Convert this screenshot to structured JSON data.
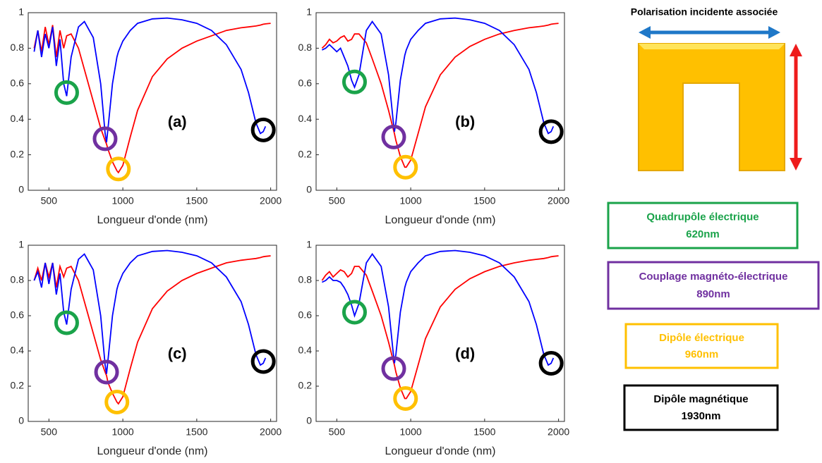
{
  "chart_data": [
    {
      "type": "line",
      "label": "(a)",
      "x_label": "Longueur d'onde (nm)",
      "x": [
        400,
        425,
        450,
        475,
        500,
        525,
        550,
        575,
        600,
        620,
        650,
        700,
        740,
        800,
        850,
        880,
        890,
        900,
        930,
        960,
        970,
        1000,
        1050,
        1100,
        1200,
        1300,
        1400,
        1500,
        1600,
        1700,
        1800,
        1850,
        1900,
        1930,
        1950,
        1965,
        2000
      ],
      "series": [
        {
          "color": "#ff0000",
          "values": [
            0.8,
            0.9,
            0.78,
            0.92,
            0.82,
            0.93,
            0.75,
            0.9,
            0.8,
            0.87,
            0.88,
            0.8,
            0.68,
            0.5,
            0.35,
            0.28,
            0.26,
            0.23,
            0.16,
            0.11,
            0.1,
            0.14,
            0.3,
            0.45,
            0.64,
            0.74,
            0.8,
            0.84,
            0.87,
            0.9,
            0.915,
            0.92,
            0.925,
            0.93,
            0.935,
            0.937,
            0.94
          ]
        },
        {
          "color": "#0000ff",
          "values": [
            0.78,
            0.9,
            0.75,
            0.88,
            0.8,
            0.92,
            0.7,
            0.85,
            0.6,
            0.53,
            0.75,
            0.92,
            0.95,
            0.86,
            0.6,
            0.32,
            0.27,
            0.35,
            0.6,
            0.75,
            0.78,
            0.84,
            0.9,
            0.94,
            0.965,
            0.97,
            0.96,
            0.94,
            0.9,
            0.82,
            0.68,
            0.55,
            0.38,
            0.32,
            0.33,
            0.36,
            null
          ]
        }
      ],
      "markers": [
        {
          "x": 620,
          "y": 0.55,
          "color": "#1aa34a"
        },
        {
          "x": 880,
          "y": 0.29,
          "color": "#7030a0"
        },
        {
          "x": 970,
          "y": 0.12,
          "color": "#ffc000"
        },
        {
          "x": 1950,
          "y": 0.34,
          "color": "#000000"
        }
      ],
      "xlim": [
        360,
        2040
      ],
      "ylim": [
        0,
        1
      ],
      "xticks": [
        500,
        1000,
        1500,
        2000
      ],
      "yticks": [
        0,
        0.2,
        0.4,
        0.6,
        0.8,
        1
      ]
    },
    {
      "type": "line",
      "label": "(b)",
      "x_label": "Longueur d'onde (nm)",
      "x": [
        400,
        425,
        450,
        475,
        500,
        525,
        550,
        575,
        600,
        620,
        650,
        700,
        740,
        800,
        850,
        880,
        890,
        900,
        930,
        960,
        970,
        1000,
        1050,
        1100,
        1200,
        1300,
        1400,
        1500,
        1600,
        1700,
        1800,
        1850,
        1900,
        1930,
        1950,
        1965,
        2000
      ],
      "series": [
        {
          "color": "#ff0000",
          "values": [
            0.8,
            0.82,
            0.85,
            0.83,
            0.84,
            0.86,
            0.87,
            0.84,
            0.85,
            0.88,
            0.88,
            0.83,
            0.74,
            0.6,
            0.45,
            0.35,
            0.32,
            0.28,
            0.19,
            0.13,
            0.13,
            0.17,
            0.32,
            0.47,
            0.65,
            0.75,
            0.81,
            0.85,
            0.88,
            0.9,
            0.915,
            0.92,
            0.925,
            0.93,
            0.935,
            0.937,
            0.94
          ]
        },
        {
          "color": "#0000ff",
          "values": [
            0.79,
            0.8,
            0.82,
            0.8,
            0.78,
            0.8,
            0.75,
            0.7,
            0.62,
            0.58,
            0.65,
            0.9,
            0.95,
            0.88,
            0.65,
            0.4,
            0.33,
            0.38,
            0.62,
            0.76,
            0.79,
            0.85,
            0.9,
            0.94,
            0.965,
            0.97,
            0.96,
            0.94,
            0.9,
            0.82,
            0.68,
            0.55,
            0.38,
            0.32,
            0.33,
            0.36,
            null
          ]
        }
      ],
      "markers": [
        {
          "x": 620,
          "y": 0.61,
          "color": "#1aa34a"
        },
        {
          "x": 885,
          "y": 0.3,
          "color": "#7030a0"
        },
        {
          "x": 965,
          "y": 0.13,
          "color": "#ffc000"
        },
        {
          "x": 1950,
          "y": 0.33,
          "color": "#000000"
        }
      ],
      "xlim": [
        360,
        2040
      ],
      "ylim": [
        0,
        1
      ],
      "xticks": [
        500,
        1000,
        1500,
        2000
      ],
      "yticks": [
        0,
        0.2,
        0.4,
        0.6,
        0.8,
        1
      ]
    },
    {
      "type": "line",
      "label": "(c)",
      "x_label": "Longueur d'onde (nm)",
      "x": [
        400,
        425,
        450,
        475,
        500,
        525,
        550,
        575,
        600,
        620,
        650,
        700,
        740,
        800,
        850,
        880,
        890,
        900,
        930,
        960,
        970,
        1000,
        1050,
        1100,
        1200,
        1300,
        1400,
        1500,
        1600,
        1700,
        1800,
        1850,
        1900,
        1930,
        1950,
        1965,
        2000
      ],
      "series": [
        {
          "color": "#ff0000",
          "values": [
            0.8,
            0.87,
            0.8,
            0.9,
            0.82,
            0.9,
            0.76,
            0.88,
            0.82,
            0.87,
            0.88,
            0.8,
            0.68,
            0.5,
            0.35,
            0.28,
            0.26,
            0.22,
            0.16,
            0.11,
            0.1,
            0.14,
            0.3,
            0.45,
            0.64,
            0.74,
            0.8,
            0.84,
            0.87,
            0.9,
            0.915,
            0.92,
            0.925,
            0.93,
            0.935,
            0.937,
            0.94
          ]
        },
        {
          "color": "#0000ff",
          "values": [
            0.8,
            0.85,
            0.76,
            0.9,
            0.78,
            0.9,
            0.72,
            0.84,
            0.62,
            0.55,
            0.75,
            0.92,
            0.95,
            0.86,
            0.6,
            0.32,
            0.27,
            0.35,
            0.6,
            0.75,
            0.78,
            0.84,
            0.9,
            0.94,
            0.965,
            0.97,
            0.96,
            0.94,
            0.9,
            0.82,
            0.68,
            0.55,
            0.38,
            0.32,
            0.33,
            0.36,
            null
          ]
        }
      ],
      "markers": [
        {
          "x": 620,
          "y": 0.56,
          "color": "#1aa34a"
        },
        {
          "x": 890,
          "y": 0.28,
          "color": "#7030a0"
        },
        {
          "x": 960,
          "y": 0.11,
          "color": "#ffc000"
        },
        {
          "x": 1950,
          "y": 0.34,
          "color": "#000000"
        }
      ],
      "xlim": [
        360,
        2040
      ],
      "ylim": [
        0,
        1
      ],
      "xticks": [
        500,
        1000,
        1500,
        2000
      ],
      "yticks": [
        0,
        0.2,
        0.4,
        0.6,
        0.8,
        1
      ]
    },
    {
      "type": "line",
      "label": "(d)",
      "x_label": "Longueur d'onde (nm)",
      "x": [
        400,
        425,
        450,
        475,
        500,
        525,
        550,
        575,
        600,
        620,
        650,
        700,
        740,
        800,
        850,
        880,
        890,
        900,
        930,
        960,
        970,
        1000,
        1050,
        1100,
        1200,
        1300,
        1400,
        1500,
        1600,
        1700,
        1800,
        1850,
        1900,
        1930,
        1950,
        1965,
        2000
      ],
      "series": [
        {
          "color": "#ff0000",
          "values": [
            0.8,
            0.83,
            0.85,
            0.82,
            0.84,
            0.86,
            0.85,
            0.82,
            0.84,
            0.88,
            0.88,
            0.83,
            0.74,
            0.6,
            0.45,
            0.35,
            0.32,
            0.28,
            0.19,
            0.13,
            0.13,
            0.17,
            0.32,
            0.47,
            0.65,
            0.75,
            0.81,
            0.85,
            0.88,
            0.9,
            0.915,
            0.92,
            0.925,
            0.93,
            0.935,
            0.937,
            0.94
          ]
        },
        {
          "color": "#0000ff",
          "values": [
            0.79,
            0.8,
            0.82,
            0.8,
            0.8,
            0.79,
            0.76,
            0.72,
            0.66,
            0.6,
            0.67,
            0.9,
            0.95,
            0.88,
            0.65,
            0.4,
            0.33,
            0.38,
            0.62,
            0.76,
            0.79,
            0.85,
            0.9,
            0.94,
            0.965,
            0.97,
            0.96,
            0.94,
            0.9,
            0.82,
            0.68,
            0.55,
            0.38,
            0.32,
            0.33,
            0.36,
            null
          ]
        }
      ],
      "markers": [
        {
          "x": 620,
          "y": 0.62,
          "color": "#1aa34a"
        },
        {
          "x": 885,
          "y": 0.3,
          "color": "#7030a0"
        },
        {
          "x": 965,
          "y": 0.13,
          "color": "#ffc000"
        },
        {
          "x": 1950,
          "y": 0.33,
          "color": "#000000"
        }
      ],
      "xlim": [
        360,
        2040
      ],
      "ylim": [
        0,
        1
      ],
      "xticks": [
        500,
        1000,
        1500,
        2000
      ],
      "yticks": [
        0,
        0.2,
        0.4,
        0.6,
        0.8,
        1
      ]
    }
  ],
  "legend": {
    "title": "Polarisation incidente associée",
    "modes": [
      {
        "name": "Quadrupôle électrique",
        "wavelength": "620nm",
        "color": "#1aa34a"
      },
      {
        "name": "Couplage magnéto-électrique",
        "wavelength": "890nm",
        "color": "#7030a0"
      },
      {
        "name": "Dipôle électrique",
        "wavelength": "960nm",
        "color": "#ffc000"
      },
      {
        "name": "Dipôle magnétique",
        "wavelength": "1930nm",
        "color": "#000000"
      }
    ]
  }
}
